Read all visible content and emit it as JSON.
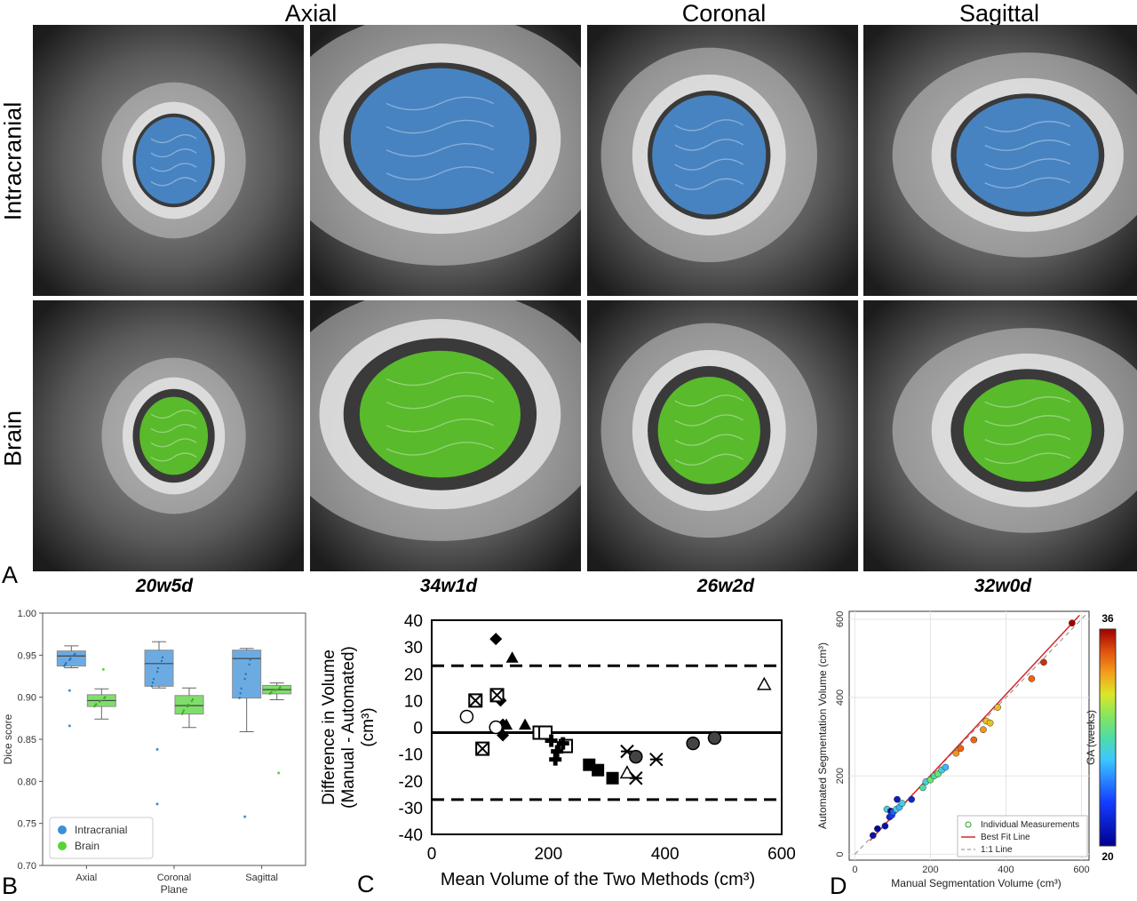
{
  "figure": {
    "columns": {
      "axial": "Axial",
      "coronal": "Coronal",
      "sagittal": "Sagittal"
    },
    "rows": {
      "intracranial": "Intracranial",
      "brain": "Brain"
    },
    "ages": [
      "20w5d",
      "34w1d",
      "26w2d",
      "32w0d"
    ],
    "panel_letters": {
      "a": "A",
      "b": "B",
      "c": "C",
      "d": "D"
    },
    "colors": {
      "intracranial_mask": "#4a90d9",
      "brain_mask": "#5fd12a"
    }
  },
  "chart_data": [
    {
      "id": "B",
      "type": "box",
      "ylabel": "Dice score",
      "xlabel": "Plane",
      "categories": [
        "Axial",
        "Coronal",
        "Sagittal"
      ],
      "ylim": [
        0.7,
        1.0
      ],
      "yticks": [
        "0.70",
        "0.75",
        "0.80",
        "0.85",
        "0.90",
        "0.95",
        "1.00"
      ],
      "legend": {
        "position": "bottom-left",
        "entries": [
          "Intracranial",
          "Brain"
        ]
      },
      "series": [
        {
          "name": "Intracranial",
          "color": "#3b8fd9",
          "boxes": [
            {
              "q1": 0.937,
              "median": 0.949,
              "q3": 0.955,
              "whisker_low": 0.935,
              "whisker_high": 0.961,
              "outliers": [
                0.866,
                0.908
              ]
            },
            {
              "q1": 0.913,
              "median": 0.94,
              "q3": 0.956,
              "whisker_low": 0.911,
              "whisker_high": 0.966,
              "outliers": [
                0.838,
                0.773
              ]
            },
            {
              "q1": 0.899,
              "median": 0.946,
              "q3": 0.956,
              "whisker_low": 0.859,
              "whisker_high": 0.958,
              "outliers": [
                0.758
              ]
            }
          ]
        },
        {
          "name": "Brain",
          "color": "#55d43a",
          "boxes": [
            {
              "q1": 0.889,
              "median": 0.896,
              "q3": 0.903,
              "whisker_low": 0.874,
              "whisker_high": 0.91,
              "outliers": [
                0.933
              ]
            },
            {
              "q1": 0.88,
              "median": 0.89,
              "q3": 0.902,
              "whisker_low": 0.864,
              "whisker_high": 0.911,
              "outliers": []
            },
            {
              "q1": 0.904,
              "median": 0.909,
              "q3": 0.914,
              "whisker_low": 0.897,
              "whisker_high": 0.917,
              "outliers": [
                0.81
              ]
            }
          ]
        }
      ]
    },
    {
      "id": "C",
      "type": "scatter",
      "title": "",
      "xlabel": "Mean Volume of the Two Methods (cm³)",
      "ylabel_lines": [
        "Difference in Volume",
        "(Manual - Automated)",
        "(cm³)"
      ],
      "xlim": [
        0,
        600
      ],
      "ylim": [
        -40,
        40
      ],
      "xticks": [
        0,
        200,
        400,
        600
      ],
      "yticks": [
        -40,
        -30,
        -20,
        -10,
        0,
        10,
        20,
        30,
        40
      ],
      "mean_line": -2,
      "limits": [
        23,
        -27
      ],
      "points": [
        {
          "x": 110,
          "y": 33,
          "marker": "diamond"
        },
        {
          "x": 118,
          "y": 10,
          "marker": "diamond"
        },
        {
          "x": 122,
          "y": 1,
          "marker": "diamond"
        },
        {
          "x": 122,
          "y": -3,
          "marker": "diamond"
        },
        {
          "x": 138,
          "y": 26,
          "marker": "triangle"
        },
        {
          "x": 128,
          "y": 1,
          "marker": "triangle"
        },
        {
          "x": 160,
          "y": 1,
          "marker": "triangle"
        },
        {
          "x": 75,
          "y": 10,
          "marker": "box-x"
        },
        {
          "x": 112,
          "y": 12,
          "marker": "box-x"
        },
        {
          "x": 87,
          "y": -8,
          "marker": "box-x"
        },
        {
          "x": 60,
          "y": 4,
          "marker": "circle-open"
        },
        {
          "x": 110,
          "y": 0,
          "marker": "circle-open"
        },
        {
          "x": 185,
          "y": -2,
          "marker": "square-open"
        },
        {
          "x": 195,
          "y": -2,
          "marker": "square-open"
        },
        {
          "x": 230,
          "y": -7,
          "marker": "square-open"
        },
        {
          "x": 205,
          "y": -5,
          "marker": "cross"
        },
        {
          "x": 215,
          "y": -9,
          "marker": "cross"
        },
        {
          "x": 212,
          "y": -12,
          "marker": "cross"
        },
        {
          "x": 225,
          "y": -6,
          "marker": "cross"
        },
        {
          "x": 270,
          "y": -14,
          "marker": "square"
        },
        {
          "x": 285,
          "y": -16,
          "marker": "square"
        },
        {
          "x": 310,
          "y": -19,
          "marker": "square"
        },
        {
          "x": 335,
          "y": -17,
          "marker": "triangle-open"
        },
        {
          "x": 570,
          "y": 16,
          "marker": "triangle-open"
        },
        {
          "x": 335,
          "y": -9,
          "marker": "asterisk"
        },
        {
          "x": 350,
          "y": -19,
          "marker": "asterisk"
        },
        {
          "x": 385,
          "y": -12,
          "marker": "asterisk"
        },
        {
          "x": 350,
          "y": -11,
          "marker": "circle-filled"
        },
        {
          "x": 448,
          "y": -6,
          "marker": "circle-filled"
        },
        {
          "x": 485,
          "y": -4,
          "marker": "circle-filled"
        }
      ]
    },
    {
      "id": "D",
      "type": "scatter",
      "xlabel": "Manual Segmentation Volume (cm³)",
      "ylabel": "Automated Segmentation Volume (cm³)",
      "xlim": [
        -15,
        620
      ],
      "ylim": [
        -15,
        620
      ],
      "xticks": [
        0,
        200,
        400,
        600
      ],
      "yticks": [
        0,
        200,
        400,
        600
      ],
      "colorbar": {
        "label": "GA (weeks)",
        "min": 20,
        "max": 36
      },
      "legend": {
        "position": "bottom-right",
        "entries": [
          "Individual Measurements",
          "Best Fit Line",
          "1:1 Line"
        ]
      },
      "best_fit": {
        "x": [
          40,
          595
        ],
        "y": [
          35,
          610
        ]
      },
      "identity_line": {
        "x": [
          0,
          610
        ],
        "y": [
          0,
          610
        ]
      },
      "points": [
        {
          "x": 48,
          "y": 48,
          "ga": 21
        },
        {
          "x": 60,
          "y": 65,
          "ga": 20.5
        },
        {
          "x": 80,
          "y": 72,
          "ga": 21
        },
        {
          "x": 85,
          "y": 115,
          "ga": 27
        },
        {
          "x": 92,
          "y": 95,
          "ga": 22
        },
        {
          "x": 95,
          "y": 110,
          "ga": 20.5
        },
        {
          "x": 98,
          "y": 100,
          "ga": 23
        },
        {
          "x": 102,
          "y": 108,
          "ga": 24
        },
        {
          "x": 110,
          "y": 115,
          "ga": 27
        },
        {
          "x": 112,
          "y": 140,
          "ga": 21.5
        },
        {
          "x": 118,
          "y": 120,
          "ga": 26
        },
        {
          "x": 125,
          "y": 130,
          "ga": 27
        },
        {
          "x": 150,
          "y": 140,
          "ga": 22
        },
        {
          "x": 180,
          "y": 170,
          "ga": 28
        },
        {
          "x": 188,
          "y": 185,
          "ga": 27
        },
        {
          "x": 200,
          "y": 190,
          "ga": 29
        },
        {
          "x": 210,
          "y": 200,
          "ga": 28
        },
        {
          "x": 220,
          "y": 205,
          "ga": 29
        },
        {
          "x": 230,
          "y": 215,
          "ga": 27
        },
        {
          "x": 240,
          "y": 222,
          "ga": 26
        },
        {
          "x": 268,
          "y": 258,
          "ga": 33
        },
        {
          "x": 280,
          "y": 270,
          "ga": 34
        },
        {
          "x": 315,
          "y": 292,
          "ga": 34
        },
        {
          "x": 340,
          "y": 318,
          "ga": 33
        },
        {
          "x": 348,
          "y": 340,
          "ga": 32
        },
        {
          "x": 358,
          "y": 335,
          "ga": 32
        },
        {
          "x": 378,
          "y": 375,
          "ga": 32
        },
        {
          "x": 468,
          "y": 448,
          "ga": 34
        },
        {
          "x": 500,
          "y": 490,
          "ga": 35
        },
        {
          "x": 575,
          "y": 590,
          "ga": 36
        }
      ]
    }
  ]
}
